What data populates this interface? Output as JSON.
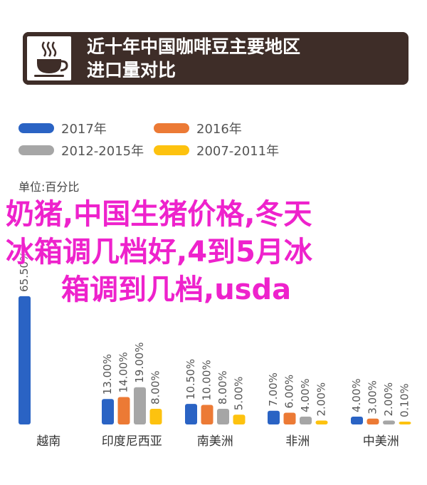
{
  "header": {
    "title_line1": "近十年中国咖啡豆主要地区",
    "title_line2": "进口量对比",
    "icon": "coffee-cup-icon"
  },
  "overlay_text": {
    "line1": "奶猪,中国生猪价格,冬天",
    "line2": "冰箱调几档好,4到5月冰",
    "line3": "箱调到几档,usda"
  },
  "chart_data": {
    "type": "bar",
    "unit_label": "单位:百分比",
    "categories": [
      "越南",
      "印度尼西亚",
      "南美洲",
      "非洲",
      "中美洲"
    ],
    "series": [
      {
        "name": "2017年",
        "color": "#2a63c4",
        "values": [
          65.5,
          13.0,
          10.5,
          7.0,
          4.0
        ]
      },
      {
        "name": "2016年",
        "color": "#ec7a35",
        "values": [
          null,
          14.0,
          10.0,
          6.0,
          3.0
        ]
      },
      {
        "name": "2012-2015年",
        "color": "#a6a6a6",
        "values": [
          null,
          19.0,
          8.0,
          4.0,
          2.0
        ]
      },
      {
        "name": "2007-2011年",
        "color": "#fdc20f",
        "values": [
          null,
          8.0,
          5.0,
          2.0,
          0.1
        ]
      }
    ],
    "value_labels": [
      [
        "65.50%",
        "",
        "",
        ""
      ],
      [
        "13.00%",
        "14.00%",
        "19.00%",
        "8.00%"
      ],
      [
        "10.50%",
        "10.00%",
        "8.00%",
        "5.00%"
      ],
      [
        "7.00%",
        "6.00%",
        "4.00%",
        "2.00%"
      ],
      [
        "4.00%",
        "3.00%",
        "2.00%",
        "0.10%"
      ]
    ],
    "legend_placement": "top",
    "grid": false
  }
}
